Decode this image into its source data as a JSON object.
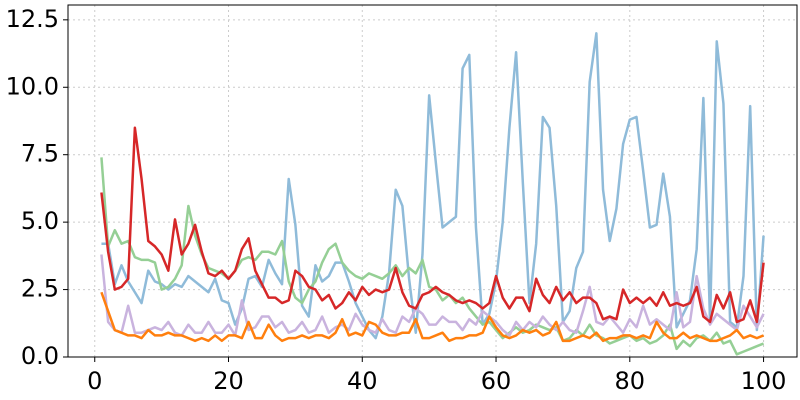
{
  "chart_data": {
    "type": "line",
    "x": [
      1,
      2,
      3,
      4,
      5,
      6,
      7,
      8,
      9,
      10,
      11,
      12,
      13,
      14,
      15,
      16,
      17,
      18,
      19,
      20,
      21,
      22,
      23,
      24,
      25,
      26,
      27,
      28,
      29,
      30,
      31,
      32,
      33,
      34,
      35,
      36,
      37,
      38,
      39,
      40,
      41,
      42,
      43,
      44,
      45,
      46,
      47,
      48,
      49,
      50,
      51,
      52,
      53,
      54,
      55,
      56,
      57,
      58,
      59,
      60,
      61,
      62,
      63,
      64,
      65,
      66,
      67,
      68,
      69,
      70,
      71,
      72,
      73,
      74,
      75,
      76,
      77,
      78,
      79,
      80,
      81,
      82,
      83,
      84,
      85,
      86,
      87,
      88,
      89,
      90,
      91,
      92,
      93,
      94,
      95,
      96,
      97,
      98,
      99,
      100
    ],
    "series": [
      {
        "color": "#8fbbd9",
        "values": [
          4.2,
          4.2,
          2.7,
          3.4,
          2.8,
          2.4,
          2.0,
          3.2,
          2.8,
          2.7,
          2.5,
          2.7,
          2.6,
          3.0,
          2.8,
          2.6,
          2.4,
          2.9,
          2.1,
          2.0,
          1.2,
          1.8,
          2.9,
          3.0,
          2.6,
          3.6,
          3.1,
          2.7,
          6.6,
          4.9,
          1.9,
          1.5,
          3.4,
          2.8,
          3.0,
          3.5,
          3.5,
          2.8,
          2.0,
          1.5,
          1.0,
          0.7,
          1.5,
          3.1,
          6.2,
          5.6,
          2.9,
          0.9,
          3.8,
          9.7,
          7.2,
          4.8,
          5.0,
          5.2,
          10.7,
          11.2,
          4.8,
          1.2,
          1.6,
          2.8,
          5.0,
          8.5,
          11.3,
          6.5,
          2.0,
          4.2,
          8.9,
          8.5,
          5.6,
          1.3,
          1.7,
          3.3,
          3.9,
          10.2,
          12.0,
          6.2,
          4.3,
          5.5,
          7.9,
          8.8,
          8.9,
          6.9,
          4.8,
          4.9,
          6.8,
          5.2,
          1.1,
          1.6,
          2.1,
          4.0,
          9.6,
          1.3,
          11.7,
          9.4,
          1.3,
          1.1,
          3.0,
          9.3,
          1.0,
          4.5
        ]
      },
      {
        "color": "#95cf95",
        "values": [
          7.4,
          4.1,
          4.7,
          4.2,
          4.3,
          3.7,
          3.6,
          3.6,
          3.5,
          2.5,
          2.6,
          2.9,
          3.4,
          5.6,
          4.5,
          3.8,
          3.3,
          3.2,
          3.1,
          2.9,
          3.2,
          3.6,
          3.7,
          3.6,
          3.9,
          3.9,
          3.8,
          4.3,
          2.8,
          2.2,
          2.0,
          2.5,
          2.8,
          3.5,
          4.0,
          4.2,
          3.5,
          3.2,
          3.0,
          2.9,
          3.1,
          3.0,
          2.9,
          3.1,
          3.4,
          3.0,
          3.3,
          3.1,
          3.6,
          2.6,
          2.5,
          2.1,
          2.3,
          2.0,
          2.2,
          1.8,
          1.5,
          1.2,
          1.3,
          1.0,
          0.7,
          0.9,
          1.1,
          0.9,
          1.0,
          1.2,
          1.1,
          1.0,
          1.1,
          0.6,
          0.7,
          1.0,
          0.8,
          1.2,
          0.8,
          0.7,
          0.5,
          0.6,
          0.7,
          0.8,
          0.6,
          0.7,
          0.5,
          0.6,
          0.8,
          1.2,
          0.3,
          0.6,
          0.4,
          0.7,
          0.8,
          0.6,
          0.9,
          0.5,
          0.6,
          0.1,
          0.2,
          0.3,
          0.4,
          0.5
        ]
      },
      {
        "color": "#c9b3de",
        "values": [
          3.8,
          1.3,
          1.0,
          0.9,
          1.9,
          0.9,
          0.9,
          1.0,
          1.1,
          1.0,
          1.3,
          0.9,
          0.8,
          1.2,
          0.9,
          0.9,
          1.3,
          0.9,
          0.9,
          1.2,
          0.8,
          2.1,
          1.0,
          1.1,
          1.5,
          1.5,
          1.1,
          1.3,
          0.9,
          1.0,
          1.3,
          0.9,
          1.0,
          1.5,
          0.9,
          1.1,
          1.2,
          1.0,
          1.6,
          1.2,
          1.0,
          0.9,
          1.4,
          1.0,
          0.9,
          1.5,
          1.3,
          1.8,
          1.6,
          1.2,
          1.2,
          1.5,
          1.3,
          1.3,
          1.0,
          1.4,
          1.2,
          1.7,
          1.5,
          1.3,
          1.0,
          0.8,
          1.3,
          1.0,
          1.3,
          1.1,
          1.5,
          1.2,
          1.0,
          1.3,
          1.0,
          0.9,
          1.7,
          2.6,
          1.3,
          1.2,
          1.5,
          1.2,
          0.9,
          1.4,
          1.1,
          1.9,
          1.2,
          1.4,
          1.2,
          1.0,
          2.4,
          1.1,
          1.3,
          3.0,
          1.8,
          1.2,
          1.6,
          1.4,
          1.2,
          1.0,
          1.9,
          1.5,
          1.1,
          1.6
        ]
      },
      {
        "color": "#ff7f0e",
        "values": [
          2.4,
          1.7,
          1.0,
          0.9,
          0.8,
          0.8,
          0.7,
          1.0,
          0.8,
          0.8,
          0.9,
          0.8,
          0.8,
          0.7,
          0.6,
          0.7,
          0.6,
          0.8,
          0.6,
          0.8,
          0.8,
          0.7,
          1.3,
          0.7,
          0.7,
          1.2,
          0.8,
          0.6,
          0.7,
          0.7,
          0.8,
          0.7,
          0.8,
          0.8,
          0.7,
          0.9,
          1.4,
          0.8,
          0.9,
          0.8,
          1.3,
          1.2,
          0.9,
          0.8,
          0.8,
          0.9,
          0.9,
          1.4,
          0.7,
          0.7,
          0.8,
          0.9,
          0.6,
          0.7,
          0.7,
          0.8,
          0.8,
          0.9,
          1.5,
          1.1,
          0.8,
          0.7,
          0.8,
          1.0,
          0.9,
          1.0,
          0.8,
          0.9,
          1.3,
          0.6,
          0.6,
          0.7,
          0.8,
          0.7,
          0.9,
          0.6,
          0.7,
          0.7,
          0.8,
          0.8,
          0.7,
          0.8,
          0.7,
          1.3,
          0.9,
          0.7,
          0.7,
          0.9,
          0.7,
          0.8,
          0.7,
          0.6,
          0.6,
          0.7,
          0.8,
          1.0,
          0.7,
          0.8,
          0.7,
          0.8
        ]
      },
      {
        "color": "#d62728",
        "values": [
          6.1,
          3.9,
          2.5,
          2.6,
          2.9,
          8.5,
          6.6,
          4.3,
          4.1,
          3.8,
          3.2,
          5.1,
          3.8,
          4.2,
          4.9,
          3.9,
          3.1,
          3.0,
          3.2,
          2.9,
          3.2,
          4.0,
          4.4,
          3.2,
          2.7,
          2.2,
          2.2,
          2.0,
          2.1,
          3.2,
          3.0,
          2.6,
          2.5,
          2.1,
          2.3,
          1.8,
          2.0,
          2.4,
          2.1,
          2.6,
          2.3,
          2.5,
          2.4,
          2.5,
          3.3,
          2.4,
          1.9,
          1.8,
          2.3,
          2.4,
          2.6,
          2.4,
          2.3,
          2.1,
          2.0,
          2.1,
          2.0,
          1.8,
          2.0,
          3.0,
          2.2,
          1.8,
          2.2,
          2.2,
          1.7,
          2.9,
          2.3,
          2.0,
          2.6,
          2.1,
          2.4,
          2.0,
          2.2,
          2.2,
          2.0,
          1.4,
          1.5,
          1.4,
          2.5,
          2.0,
          2.2,
          2.0,
          2.2,
          1.9,
          2.4,
          1.9,
          2.0,
          1.9,
          2.0,
          2.6,
          1.5,
          1.3,
          2.3,
          1.8,
          2.4,
          1.3,
          1.4,
          2.1,
          1.3,
          3.5
        ]
      }
    ],
    "xlim": [
      -4,
      105
    ],
    "ylim": [
      0,
      13.05
    ],
    "xticks": [
      0,
      20,
      40,
      60,
      80,
      100
    ],
    "yticks": [
      {
        "value": 0,
        "label": "0.0"
      },
      2.5,
      {
        "value": 5,
        "label": "5.0"
      },
      7.5,
      {
        "value": 10,
        "label": "10.0"
      },
      12.5
    ],
    "grid": true
  }
}
